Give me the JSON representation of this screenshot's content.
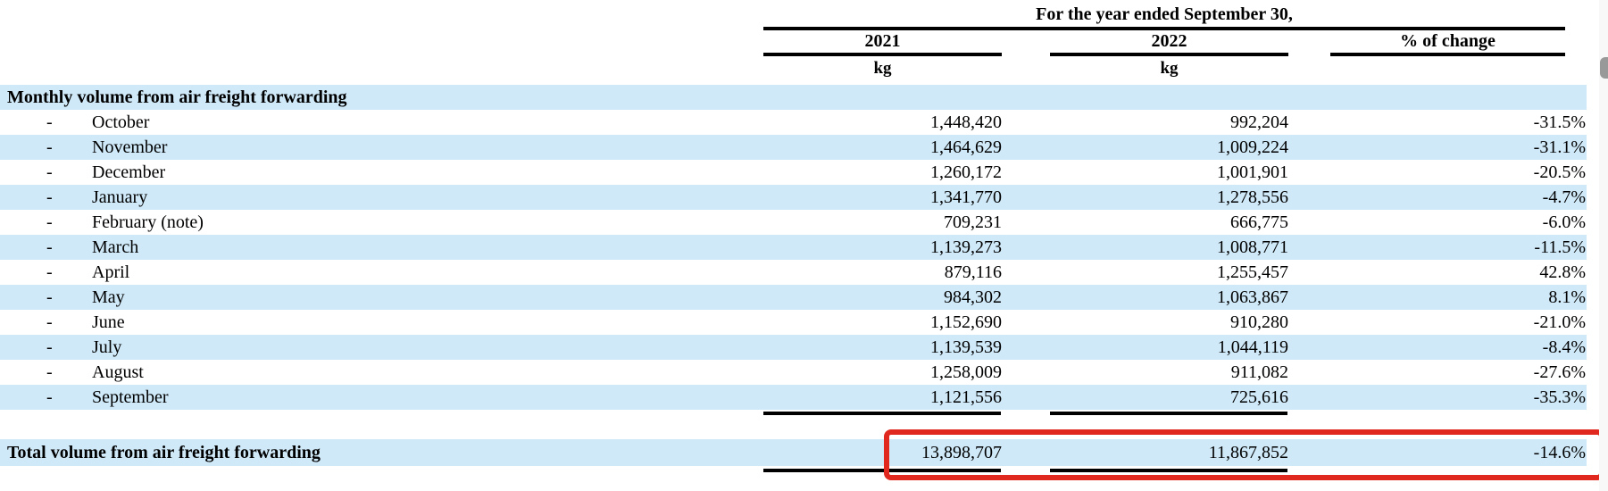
{
  "table": {
    "period_header": "For the year ended September 30,",
    "col_2021": "2021",
    "col_2022": "2022",
    "col_change": "% of change",
    "unit_2021": "kg",
    "unit_2022": "kg",
    "section_title": "Monthly volume from air freight forwarding",
    "bullet": "-",
    "rows": [
      {
        "month": "October",
        "v2021": "1,448,420",
        "v2022": "992,204",
        "change": "-31.5%"
      },
      {
        "month": "November",
        "v2021": "1,464,629",
        "v2022": "1,009,224",
        "change": "-31.1%"
      },
      {
        "month": "December",
        "v2021": "1,260,172",
        "v2022": "1,001,901",
        "change": "-20.5%"
      },
      {
        "month": "January",
        "v2021": "1,341,770",
        "v2022": "1,278,556",
        "change": "-4.7%"
      },
      {
        "month": "February (note)",
        "v2021": "709,231",
        "v2022": "666,775",
        "change": "-6.0%"
      },
      {
        "month": "March",
        "v2021": "1,139,273",
        "v2022": "1,008,771",
        "change": "-11.5%"
      },
      {
        "month": "April",
        "v2021": "879,116",
        "v2022": "1,255,457",
        "change": "42.8%"
      },
      {
        "month": "May",
        "v2021": "984,302",
        "v2022": "1,063,867",
        "change": "8.1%"
      },
      {
        "month": "June",
        "v2021": "1,152,690",
        "v2022": "910,280",
        "change": "-21.0%"
      },
      {
        "month": "July",
        "v2021": "1,139,539",
        "v2022": "1,044,119",
        "change": "-8.4%"
      },
      {
        "month": "August",
        "v2021": "1,258,009",
        "v2022": "911,082",
        "change": "-27.6%"
      },
      {
        "month": "September",
        "v2021": "1,121,556",
        "v2022": "725,616",
        "change": "-35.3%"
      }
    ],
    "total": {
      "label": "Total volume from air freight forwarding",
      "v2021": "13,898,707",
      "v2022": "11,867,852",
      "change": "-14.6%"
    }
  },
  "colors": {
    "row_highlight": "#cfe9f8",
    "annotation_red": "#e1281e",
    "rule_black": "#000000",
    "scrollbar_thumb": "#999999"
  }
}
